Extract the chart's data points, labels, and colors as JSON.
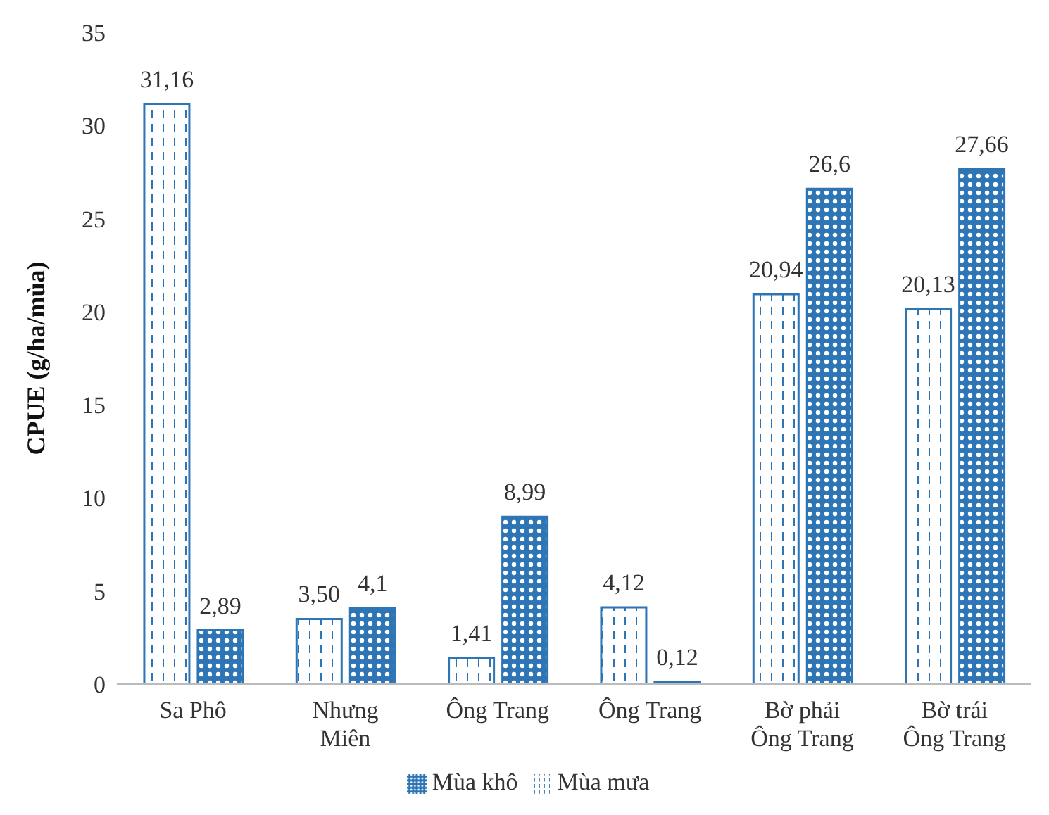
{
  "chart_data": {
    "type": "bar",
    "ylabel": "CPUE (g/ha/mùa)",
    "categories": [
      "Sa Phô",
      "Nhưng\nMiên",
      "Ông Trang",
      "Ông Trang",
      "Bờ phải\nÔng Trang",
      "Bờ trái\nÔng Trang"
    ],
    "series": [
      {
        "name": "Mùa mưa",
        "color": "#2e75b6",
        "values": [
          31.16,
          3.5,
          1.41,
          4.12,
          20.94,
          20.13
        ],
        "value_labels": [
          "31,16",
          "3,50",
          "1,41",
          "4,12",
          "20,94",
          "20,13"
        ]
      },
      {
        "name": "Mùa khô",
        "color": "#2e75b6",
        "values": [
          2.89,
          4.1,
          8.99,
          0.12,
          26.6,
          27.66
        ],
        "value_labels": [
          "2,89",
          "4,1",
          "8,99",
          "0,12",
          "26,6",
          "27,66"
        ]
      }
    ],
    "ylim": [
      0,
      35
    ],
    "yticks": [
      0,
      5,
      10,
      15,
      20,
      25,
      30,
      35
    ],
    "grid": false,
    "legend": "bottom"
  }
}
